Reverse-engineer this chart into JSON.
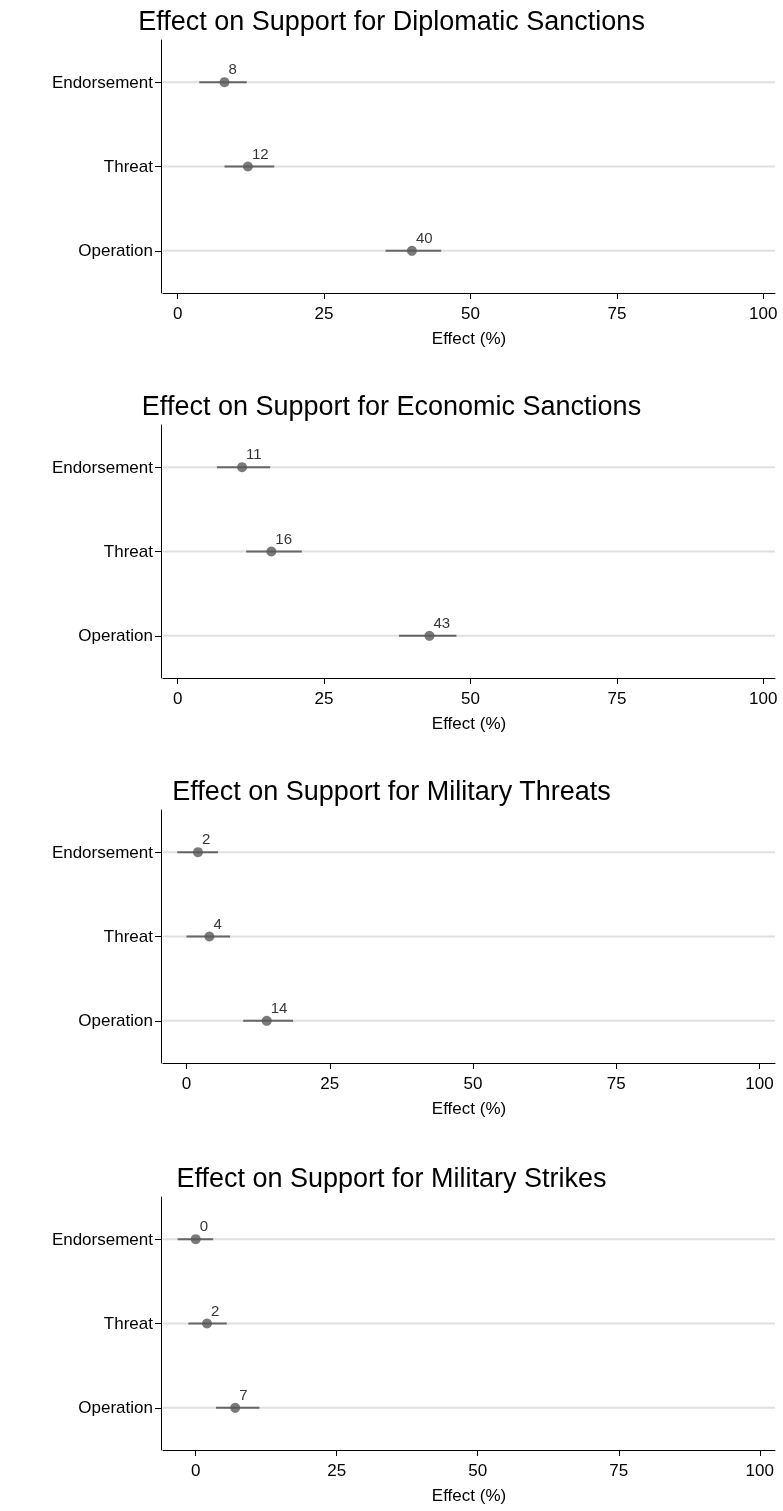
{
  "chart_data": [
    {
      "type": "scatter",
      "title": "Effect on Support for Diplomatic Sanctions",
      "xlabel": "Effect (%)",
      "orientation": "horizontal",
      "categories": [
        "Endorsement",
        "Threat",
        "Operation"
      ],
      "color": "#595959",
      "marker": "circle",
      "data_labels": true,
      "grid": "y",
      "values": [
        8,
        12,
        40
      ],
      "errors": [
        [
          3.7,
          11.8
        ],
        [
          8.0,
          16.5
        ],
        [
          35.5,
          45.0
        ]
      ],
      "xlim": [
        -2.5,
        102
      ],
      "xticks": [
        0,
        25,
        50,
        75,
        100
      ]
    },
    {
      "type": "scatter",
      "title": "Effect on Support for Economic Sanctions",
      "xlabel": "Effect (%)",
      "orientation": "horizontal",
      "categories": [
        "Endorsement",
        "Threat",
        "Operation"
      ],
      "color": "#595959",
      "marker": "circle",
      "data_labels": true,
      "grid": "y",
      "values": [
        11,
        16,
        43
      ],
      "errors": [
        [
          6.7,
          15.8
        ],
        [
          11.7,
          21.2
        ],
        [
          37.8,
          47.6
        ]
      ],
      "xlim": [
        -2.5,
        102
      ],
      "xticks": [
        0,
        25,
        50,
        75,
        100
      ]
    },
    {
      "type": "scatter",
      "title": "Effect on Support for Military Threats",
      "xlabel": "Effect (%)",
      "orientation": "horizontal",
      "categories": [
        "Endorsement",
        "Threat",
        "Operation"
      ],
      "color": "#595959",
      "marker": "circle",
      "data_labels": true,
      "grid": "y",
      "values": [
        2,
        4,
        14
      ],
      "errors": [
        [
          -1.6,
          5.5
        ],
        [
          0,
          7.6
        ],
        [
          9.9,
          18.6
        ]
      ],
      "xlim": [
        -4.1,
        102.7
      ],
      "xticks": [
        0,
        25,
        50,
        75,
        100
      ]
    },
    {
      "type": "scatter",
      "title": "Effect on Support for Military Strikes",
      "xlabel": "Effect (%)",
      "orientation": "horizontal",
      "categories": [
        "Endorsement",
        "Threat",
        "Operation"
      ],
      "color": "#595959",
      "marker": "circle",
      "data_labels": true,
      "grid": "y",
      "values": [
        0,
        2,
        7
      ],
      "errors": [
        [
          -3.2,
          3.1
        ],
        [
          -1.3,
          5.5
        ],
        [
          3.6,
          11.3
        ]
      ],
      "xlim": [
        -5.8,
        102.7
      ],
      "xticks": [
        0,
        25,
        50,
        75,
        100
      ]
    }
  ]
}
